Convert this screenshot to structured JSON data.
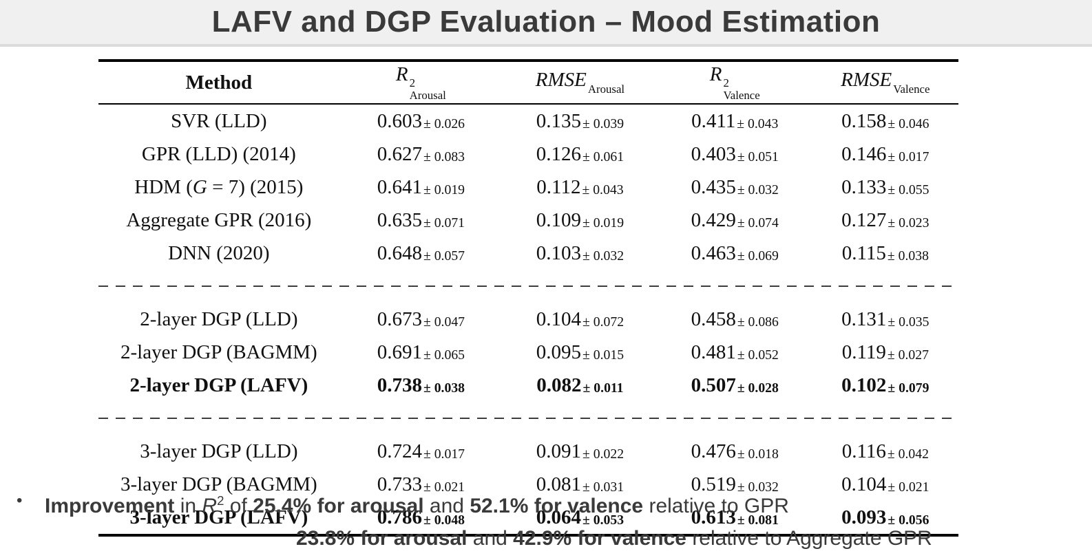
{
  "title": "LAFV and DGP Evaluation – Mood Estimation",
  "colors": {
    "title_bar_bg": "#f0f0f0",
    "title_bar_border": "#dcdcdc",
    "title_text": "#3a3a3a",
    "table_text": "#111111",
    "rule_color": "#000000",
    "dash_color": "#3c3c3c",
    "note_text": "#3a3a3a",
    "background": "#ffffff"
  },
  "table": {
    "headers": [
      {
        "text": "Method"
      },
      {
        "var": "R",
        "sup": "2",
        "sub": "Arousal"
      },
      {
        "var": "RMSE",
        "sub": "Arousal"
      },
      {
        "var": "R",
        "sup": "2",
        "sub": "Valence"
      },
      {
        "var": "RMSE",
        "sub": "Valence"
      }
    ],
    "rows": [
      {
        "method": "SVR (LLD)",
        "bold": false,
        "sep": false,
        "values": [
          [
            "0.603",
            "0.026"
          ],
          [
            "0.135",
            "0.039"
          ],
          [
            "0.411",
            "0.043"
          ],
          [
            "0.158",
            "0.046"
          ]
        ]
      },
      {
        "method": "GPR (LLD) (2014)",
        "bold": false,
        "sep": false,
        "values": [
          [
            "0.627",
            "0.083"
          ],
          [
            "0.126",
            "0.061"
          ],
          [
            "0.403",
            "0.051"
          ],
          [
            "0.146",
            "0.017"
          ]
        ]
      },
      {
        "method": "HDM (G = 7) (2015)",
        "bold": false,
        "sep": false,
        "values": [
          [
            "0.641",
            "0.019"
          ],
          [
            "0.112",
            "0.043"
          ],
          [
            "0.435",
            "0.032"
          ],
          [
            "0.133",
            "0.055"
          ]
        ]
      },
      {
        "method": "Aggregate GPR (2016)",
        "bold": false,
        "sep": false,
        "values": [
          [
            "0.635",
            "0.071"
          ],
          [
            "0.109",
            "0.019"
          ],
          [
            "0.429",
            "0.074"
          ],
          [
            "0.127",
            "0.023"
          ]
        ]
      },
      {
        "method": "DNN (2020)",
        "bold": false,
        "sep": false,
        "values": [
          [
            "0.648",
            "0.057"
          ],
          [
            "0.103",
            "0.032"
          ],
          [
            "0.463",
            "0.069"
          ],
          [
            "0.115",
            "0.038"
          ]
        ]
      },
      {
        "method": "2-layer DGP (LLD)",
        "bold": false,
        "sep": true,
        "values": [
          [
            "0.673",
            "0.047"
          ],
          [
            "0.104",
            "0.072"
          ],
          [
            "0.458",
            "0.086"
          ],
          [
            "0.131",
            "0.035"
          ]
        ]
      },
      {
        "method": "2-layer DGP (BAGMM)",
        "bold": false,
        "sep": false,
        "values": [
          [
            "0.691",
            "0.065"
          ],
          [
            "0.095",
            "0.015"
          ],
          [
            "0.481",
            "0.052"
          ],
          [
            "0.119",
            "0.027"
          ]
        ]
      },
      {
        "method": "2-layer DGP (LAFV)",
        "bold": true,
        "sep": false,
        "values": [
          [
            "0.738",
            "0.038"
          ],
          [
            "0.082",
            "0.011"
          ],
          [
            "0.507",
            "0.028"
          ],
          [
            "0.102",
            "0.079"
          ]
        ]
      },
      {
        "method": "3-layer DGP (LLD)",
        "bold": false,
        "sep": true,
        "values": [
          [
            "0.724",
            "0.017"
          ],
          [
            "0.091",
            "0.022"
          ],
          [
            "0.476",
            "0.018"
          ],
          [
            "0.116",
            "0.042"
          ]
        ]
      },
      {
        "method": "3-layer DGP (BAGMM)",
        "bold": false,
        "sep": false,
        "values": [
          [
            "0.733",
            "0.021"
          ],
          [
            "0.081",
            "0.031"
          ],
          [
            "0.519",
            "0.032"
          ],
          [
            "0.104",
            "0.021"
          ]
        ]
      },
      {
        "method": "3-layer DGP (LAFV)",
        "bold": true,
        "sep": false,
        "values": [
          [
            "0.786",
            "0.048"
          ],
          [
            "0.064",
            "0.053"
          ],
          [
            "0.613",
            "0.081"
          ],
          [
            "0.093",
            "0.056"
          ]
        ]
      }
    ]
  },
  "notes": {
    "bullet": "•",
    "line1": [
      {
        "text": "Improvement",
        "bold": true
      },
      {
        "text": " in ",
        "bold": false
      },
      {
        "text": "R",
        "bold": false,
        "italic": true,
        "sup": "2"
      },
      {
        "text": " of ",
        "bold": false
      },
      {
        "text": "25.4% for arousal",
        "bold": true
      },
      {
        "text": " and ",
        "bold": false
      },
      {
        "text": "52.1% for valence",
        "bold": true
      },
      {
        "text": " relative to GPR",
        "bold": false
      }
    ],
    "line2": [
      {
        "text": "23.8% for arousal",
        "bold": true
      },
      {
        "text": " and ",
        "bold": false
      },
      {
        "text": "42.9% for valence",
        "bold": true
      },
      {
        "text": " relative to Aggregate GPR",
        "bold": false
      }
    ]
  }
}
